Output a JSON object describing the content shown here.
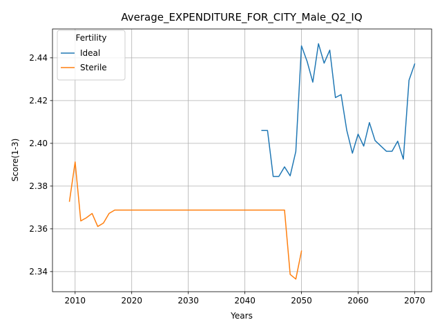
{
  "chart_data": {
    "type": "line",
    "title": "Average_EXPENDITURE_FOR_CITY_Male_Q2_IQ",
    "xlabel": "Years",
    "ylabel": "Score(1-3)",
    "xlim": [
      2006,
      2073
    ],
    "ylim": [
      2.3306,
      2.4535
    ],
    "xticks": [
      2010,
      2020,
      2030,
      2040,
      2050,
      2060,
      2070
    ],
    "xtick_labels": [
      "2010",
      "2020",
      "2030",
      "2040",
      "2050",
      "2060",
      "2070"
    ],
    "yticks": [
      2.34,
      2.36,
      2.38,
      2.4,
      2.42,
      2.44
    ],
    "ytick_labels": [
      "2.34",
      "2.36",
      "2.38",
      "2.40",
      "2.42",
      "2.44"
    ],
    "grid": true,
    "legend": {
      "title": "Fertility",
      "placement": "top-left"
    },
    "series": [
      {
        "name": "Ideal",
        "color": "#1f77b4",
        "x": [
          2043,
          2044,
          2045,
          2046,
          2047,
          2048,
          2049,
          2050,
          2051,
          2052,
          2053,
          2054,
          2055,
          2056,
          2057,
          2058,
          2059,
          2060,
          2061,
          2062,
          2063,
          2064,
          2065,
          2066,
          2067,
          2068,
          2069,
          2070
        ],
        "y": [
          2.406,
          2.406,
          2.3845,
          2.3845,
          2.389,
          2.3848,
          2.3962,
          2.4456,
          2.4383,
          2.4286,
          2.4466,
          2.4375,
          2.4436,
          2.4214,
          2.4228,
          2.4061,
          2.3954,
          2.4043,
          2.3987,
          2.4097,
          2.4013,
          2.3988,
          2.3963,
          2.3963,
          2.401,
          2.3926,
          2.4295,
          2.4371
        ]
      },
      {
        "name": "Sterile",
        "color": "#ff7f0e",
        "x": [
          2009,
          2010,
          2011,
          2012,
          2013,
          2014,
          2015,
          2016,
          2017,
          2018,
          2019,
          2020,
          2025,
          2030,
          2035,
          2040,
          2045,
          2046,
          2047,
          2048,
          2049,
          2050
        ],
        "y": [
          2.3729,
          2.3913,
          2.3637,
          2.3652,
          2.3672,
          2.3611,
          2.3627,
          2.3672,
          2.3688,
          2.3688,
          2.3688,
          2.3688,
          2.3688,
          2.3688,
          2.3688,
          2.3688,
          2.3688,
          2.3688,
          2.3688,
          2.3387,
          2.3365,
          2.3496
        ]
      }
    ]
  }
}
